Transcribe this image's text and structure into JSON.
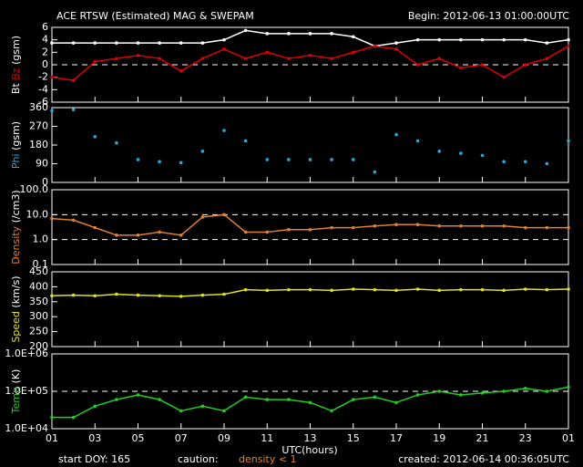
{
  "title": "ACE RTSW (Estimated) MAG & SWEPAM",
  "begin": "Begin: 2012-06-13 01:00:00UTC",
  "footer": {
    "start": "start DOY: 165",
    "caution": "caution:",
    "caution_note": "density < 1",
    "created": "created: 2012-06-14 00:36:05UTC"
  },
  "x_axis": {
    "label": "UTC(hours)",
    "xlim": [
      1,
      25
    ],
    "xticks": [
      {
        "value": 1,
        "label": "01"
      },
      {
        "value": 3,
        "label": "03"
      },
      {
        "value": 5,
        "label": "05"
      },
      {
        "value": 7,
        "label": "07"
      },
      {
        "value": 9,
        "label": "09"
      },
      11,
      13,
      15,
      17,
      19,
      21,
      23,
      {
        "value": 25,
        "label": "01"
      }
    ]
  },
  "x": [
    1,
    2,
    3,
    4,
    5,
    6,
    7,
    8,
    9,
    10,
    11,
    12,
    13,
    14,
    15,
    16,
    17,
    18,
    19,
    20,
    21,
    22,
    23,
    24,
    25
  ],
  "chart_data": [
    {
      "type": "line",
      "ylabel": [
        {
          "text": "Bt",
          "color": "#ffffff"
        },
        {
          "text": "Bz",
          "color": "#e00000"
        },
        {
          "text": "(gsm)",
          "color": "#ffffff"
        }
      ],
      "ylim": [
        -6,
        6
      ],
      "yticks": [
        -6,
        -4,
        -2,
        0,
        2,
        4,
        6
      ],
      "reference_lines": [
        0
      ],
      "series": [
        {
          "name": "Bt",
          "color": "#ffffff",
          "values": [
            3.5,
            3.5,
            3.5,
            3.5,
            3.5,
            3.5,
            3.5,
            3.5,
            4,
            5.5,
            5,
            5,
            5,
            5,
            4.5,
            3,
            3.5,
            4,
            4,
            4,
            4,
            4,
            4,
            3.5,
            4
          ]
        },
        {
          "name": "Bz",
          "color": "#e00000",
          "values": [
            -2,
            -2.5,
            0.5,
            1,
            1.5,
            1,
            -1,
            1,
            2.5,
            1,
            2,
            1,
            1.5,
            1,
            2,
            3,
            2.5,
            0,
            1,
            -0.5,
            0,
            -2,
            0,
            1,
            3
          ]
        }
      ]
    },
    {
      "type": "scatter",
      "ylabel": [
        {
          "text": "Phi",
          "color": "#22aadd"
        },
        {
          "text": "(gsm)",
          "color": "#ffffff"
        }
      ],
      "ylim": [
        0,
        360
      ],
      "yticks": [
        0,
        90,
        180,
        270,
        360
      ],
      "series": [
        {
          "name": "Phi",
          "color": "#22aadd",
          "values": [
            345,
            350,
            220,
            190,
            110,
            100,
            95,
            150,
            250,
            200,
            110,
            110,
            110,
            110,
            110,
            50,
            230,
            200,
            150,
            140,
            130,
            100,
            100,
            90,
            200
          ]
        }
      ]
    },
    {
      "type": "line",
      "log": true,
      "ylabel": [
        {
          "text": "Density",
          "color": "#e08030"
        },
        {
          "text": "(/cm3)",
          "color": "#ffffff"
        }
      ],
      "ylim": [
        0.1,
        100
      ],
      "yticks": [
        0.1,
        {
          "value": 1,
          "label": "1.0"
        },
        {
          "value": 10,
          "label": "10.0"
        },
        {
          "value": 100,
          "label": "100.0"
        }
      ],
      "reference_lines": [
        1,
        10
      ],
      "series": [
        {
          "name": "Density",
          "color": "#e08030",
          "values": [
            7,
            6,
            3,
            1.5,
            1.5,
            2,
            1.5,
            8,
            10,
            2,
            2,
            2.5,
            2.5,
            3,
            3,
            3.5,
            4,
            4,
            3.5,
            3.5,
            3.5,
            3.5,
            3,
            3,
            3
          ]
        }
      ]
    },
    {
      "type": "line",
      "ylabel": [
        {
          "text": "Speed",
          "color": "#e0e020"
        },
        {
          "text": "(km/s)",
          "color": "#ffffff"
        }
      ],
      "ylim": [
        200,
        450
      ],
      "yticks": [
        200,
        250,
        300,
        350,
        400,
        450
      ],
      "series": [
        {
          "name": "Speed",
          "color": "#e0e020",
          "values": [
            370,
            372,
            370,
            375,
            372,
            370,
            368,
            372,
            375,
            390,
            388,
            390,
            390,
            388,
            392,
            390,
            388,
            392,
            388,
            390,
            390,
            388,
            392,
            390,
            392
          ]
        }
      ]
    },
    {
      "type": "line",
      "log": true,
      "ylabel": [
        {
          "text": "Temp",
          "color": "#22cc22"
        },
        {
          "text": "(K)",
          "color": "#ffffff"
        }
      ],
      "ylim": [
        10000,
        1000000
      ],
      "yticks": [
        {
          "value": 10000,
          "label": "1.0E+04"
        },
        {
          "value": 100000,
          "label": "1.0E+05"
        },
        {
          "value": 1000000,
          "label": "1.0E+06"
        }
      ],
      "reference_lines": [
        100000
      ],
      "series": [
        {
          "name": "Temp",
          "color": "#22cc22",
          "values": [
            20000,
            20000,
            40000,
            60000,
            80000,
            60000,
            30000,
            40000,
            30000,
            70000,
            60000,
            60000,
            50000,
            30000,
            60000,
            70000,
            50000,
            80000,
            100000,
            80000,
            90000,
            100000,
            120000,
            100000,
            130000
          ]
        }
      ]
    }
  ]
}
